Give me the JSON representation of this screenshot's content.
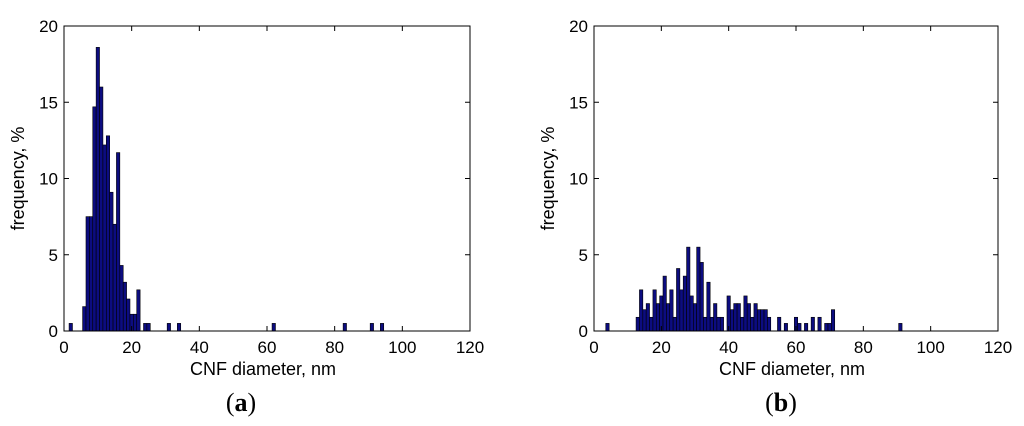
{
  "chart_data": [
    {
      "type": "bar",
      "panel_label": "a",
      "xlabel": "CNF diameter, nm",
      "ylabel": "frequency, %",
      "xlim": [
        0,
        120
      ],
      "ylim": [
        0,
        20
      ],
      "xticks": [
        0,
        20,
        40,
        60,
        80,
        100,
        120
      ],
      "yticks": [
        0,
        5,
        10,
        15,
        20
      ],
      "bin_width": 1,
      "bars": [
        {
          "x": 2,
          "y": 0.5
        },
        {
          "x": 6,
          "y": 1.6
        },
        {
          "x": 7,
          "y": 7.5
        },
        {
          "x": 8,
          "y": 7.5
        },
        {
          "x": 9,
          "y": 14.7
        },
        {
          "x": 10,
          "y": 18.6
        },
        {
          "x": 11,
          "y": 16.0
        },
        {
          "x": 12,
          "y": 12.2
        },
        {
          "x": 13,
          "y": 12.8
        },
        {
          "x": 14,
          "y": 9.1
        },
        {
          "x": 15,
          "y": 7.0
        },
        {
          "x": 16,
          "y": 11.7
        },
        {
          "x": 17,
          "y": 4.3
        },
        {
          "x": 18,
          "y": 3.2
        },
        {
          "x": 19,
          "y": 2.1
        },
        {
          "x": 20,
          "y": 1.1
        },
        {
          "x": 21,
          "y": 1.1
        },
        {
          "x": 22,
          "y": 2.7
        },
        {
          "x": 24,
          "y": 0.5
        },
        {
          "x": 25,
          "y": 0.5
        },
        {
          "x": 31,
          "y": 0.5
        },
        {
          "x": 34,
          "y": 0.5
        },
        {
          "x": 62,
          "y": 0.5
        },
        {
          "x": 83,
          "y": 0.5
        },
        {
          "x": 91,
          "y": 0.5
        },
        {
          "x": 94,
          "y": 0.5
        }
      ]
    },
    {
      "type": "bar",
      "panel_label": "b",
      "xlabel": "CNF diameter, nm",
      "ylabel": "frequency, %",
      "xlim": [
        0,
        120
      ],
      "ylim": [
        0,
        20
      ],
      "xticks": [
        0,
        20,
        40,
        60,
        80,
        100,
        120
      ],
      "yticks": [
        0,
        5,
        10,
        15,
        20
      ],
      "bin_width": 1,
      "bars": [
        {
          "x": 4,
          "y": 0.5
        },
        {
          "x": 13,
          "y": 0.9
        },
        {
          "x": 14,
          "y": 2.7
        },
        {
          "x": 15,
          "y": 1.4
        },
        {
          "x": 16,
          "y": 1.8
        },
        {
          "x": 17,
          "y": 0.9
        },
        {
          "x": 18,
          "y": 2.7
        },
        {
          "x": 19,
          "y": 1.8
        },
        {
          "x": 20,
          "y": 2.3
        },
        {
          "x": 21,
          "y": 3.6
        },
        {
          "x": 22,
          "y": 1.8
        },
        {
          "x": 23,
          "y": 2.7
        },
        {
          "x": 24,
          "y": 0.9
        },
        {
          "x": 25,
          "y": 4.1
        },
        {
          "x": 26,
          "y": 2.7
        },
        {
          "x": 27,
          "y": 3.6
        },
        {
          "x": 28,
          "y": 5.5
        },
        {
          "x": 29,
          "y": 2.3
        },
        {
          "x": 30,
          "y": 1.8
        },
        {
          "x": 31,
          "y": 5.5
        },
        {
          "x": 32,
          "y": 4.5
        },
        {
          "x": 33,
          "y": 0.9
        },
        {
          "x": 34,
          "y": 3.2
        },
        {
          "x": 35,
          "y": 0.9
        },
        {
          "x": 36,
          "y": 1.8
        },
        {
          "x": 37,
          "y": 0.9
        },
        {
          "x": 38,
          "y": 0.9
        },
        {
          "x": 40,
          "y": 2.3
        },
        {
          "x": 41,
          "y": 1.4
        },
        {
          "x": 42,
          "y": 1.8
        },
        {
          "x": 43,
          "y": 1.8
        },
        {
          "x": 44,
          "y": 0.9
        },
        {
          "x": 45,
          "y": 2.3
        },
        {
          "x": 46,
          "y": 1.8
        },
        {
          "x": 47,
          "y": 0.9
        },
        {
          "x": 48,
          "y": 1.8
        },
        {
          "x": 49,
          "y": 1.4
        },
        {
          "x": 50,
          "y": 1.4
        },
        {
          "x": 51,
          "y": 1.4
        },
        {
          "x": 52,
          "y": 0.9
        },
        {
          "x": 55,
          "y": 0.9
        },
        {
          "x": 57,
          "y": 0.5
        },
        {
          "x": 60,
          "y": 0.9
        },
        {
          "x": 61,
          "y": 0.5
        },
        {
          "x": 63,
          "y": 0.5
        },
        {
          "x": 65,
          "y": 0.9
        },
        {
          "x": 67,
          "y": 0.9
        },
        {
          "x": 69,
          "y": 0.5
        },
        {
          "x": 70,
          "y": 0.5
        },
        {
          "x": 71,
          "y": 1.4
        },
        {
          "x": 91,
          "y": 0.5
        }
      ]
    }
  ],
  "colors": {
    "bar_fill": "#0c0c80",
    "bar_edge": "#000000",
    "axes": "#000000",
    "background": "#ffffff"
  }
}
